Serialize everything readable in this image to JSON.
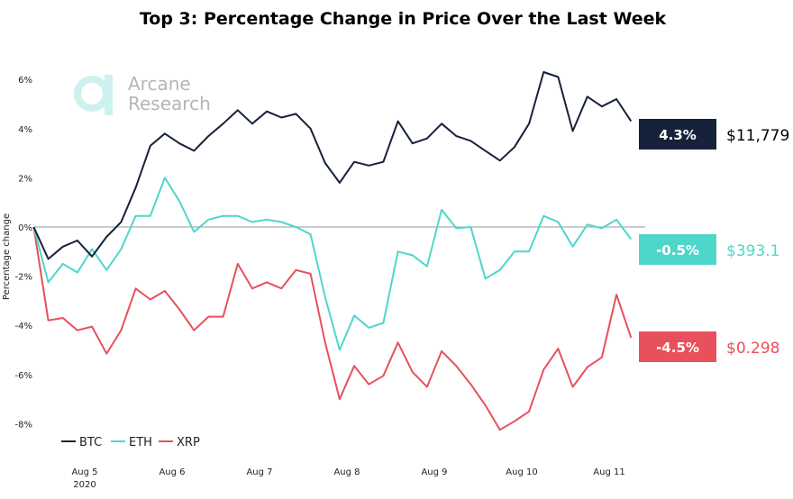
{
  "chart_data": {
    "type": "line",
    "title": "Top 3: Percentage Change in Price Over the Last Week",
    "xlabel": "",
    "ylabel": "Percentage change",
    "ylim": [
      -9,
      7
    ],
    "y_ticks": [
      "6%",
      "4%",
      "2%",
      "0%",
      "-2%",
      "-4%",
      "-6%",
      "-8%"
    ],
    "y_tick_values": [
      6,
      4,
      2,
      0,
      -2,
      -4,
      -6,
      -8
    ],
    "x_ticks": [
      {
        "label": "Aug 5",
        "sub": "2020",
        "date": "2020-08-05"
      },
      {
        "label": "Aug 6",
        "sub": "",
        "date": "2020-08-06"
      },
      {
        "label": "Aug 7",
        "sub": "",
        "date": "2020-08-07"
      },
      {
        "label": "Aug 8",
        "sub": "",
        "date": "2020-08-08"
      },
      {
        "label": "Aug 9",
        "sub": "",
        "date": "2020-08-09"
      },
      {
        "label": "Aug 10",
        "sub": "",
        "date": "2020-08-10"
      },
      {
        "label": "Aug 11",
        "sub": "",
        "date": "2020-08-11"
      }
    ],
    "x_start": "2020-08-04T10:00",
    "x_step_hours": 4,
    "grid": false,
    "zero_line": true,
    "legend_position": "bottom-left",
    "series": [
      {
        "name": "BTC",
        "color": "#16213a",
        "last_change": "4.3%",
        "price": "$11,779",
        "values": [
          0,
          -1.3,
          -0.8,
          -0.55,
          -1.2,
          -0.4,
          0.2,
          1.6,
          3.3,
          3.8,
          3.4,
          3.1,
          3.7,
          4.2,
          4.75,
          4.2,
          4.7,
          4.45,
          4.6,
          4.0,
          2.6,
          1.8,
          2.65,
          2.5,
          2.65,
          4.3,
          3.4,
          3.6,
          4.2,
          3.7,
          3.5,
          3.1,
          2.7,
          3.25,
          4.2,
          6.3,
          6.1,
          3.9,
          5.3,
          4.9,
          5.2,
          4.3
        ]
      },
      {
        "name": "ETH",
        "color": "#4fd6cb",
        "last_change": "-0.5%",
        "price": "$393.1",
        "values": [
          0,
          -2.25,
          -1.5,
          -1.85,
          -0.9,
          -1.75,
          -0.9,
          0.45,
          0.45,
          2.0,
          1.05,
          -0.2,
          0.3,
          0.45,
          0.45,
          0.2,
          0.3,
          0.2,
          0,
          -0.3,
          -2.85,
          -5.0,
          -3.6,
          -4.1,
          -3.9,
          -1.0,
          -1.15,
          -1.6,
          0.7,
          -0.05,
          0,
          -2.1,
          -1.75,
          -1.0,
          -1.0,
          0.45,
          0.2,
          -0.8,
          0.1,
          -0.05,
          0.3,
          -0.5
        ]
      },
      {
        "name": "XRP",
        "color": "#e8505b",
        "last_change": "-4.5%",
        "price": "$0.298",
        "values": [
          0,
          -3.8,
          -3.7,
          -4.2,
          -4.05,
          -5.15,
          -4.2,
          -2.5,
          -2.95,
          -2.6,
          -3.35,
          -4.2,
          -3.65,
          -3.65,
          -1.5,
          -2.5,
          -2.25,
          -2.5,
          -1.75,
          -1.9,
          -4.7,
          -7.0,
          -5.65,
          -6.4,
          -6.05,
          -4.7,
          -5.9,
          -6.5,
          -5.05,
          -5.65,
          -6.4,
          -7.25,
          -8.25,
          -7.9,
          -7.5,
          -5.8,
          -4.95,
          -6.5,
          -5.7,
          -5.3,
          -2.75,
          -4.5
        ]
      }
    ]
  },
  "watermark": {
    "line1": "Arcane",
    "line2": "Research",
    "color": "#bfeeea"
  }
}
